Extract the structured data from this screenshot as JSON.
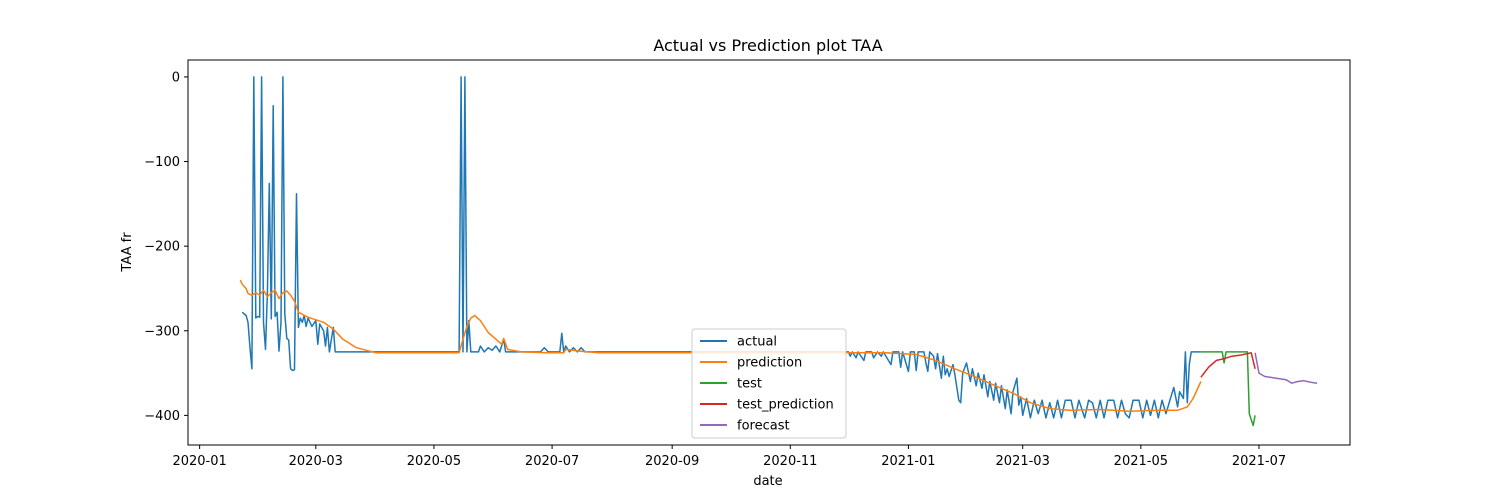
{
  "chart_data": {
    "type": "line",
    "title": "Actual vs Prediction plot TAA",
    "xlabel": "date",
    "ylabel": "TAA fr",
    "xlim": [
      "2019-12-26",
      "2021-08-17"
    ],
    "ylim": [
      -435,
      20
    ],
    "x_ticks": [
      "2020-01",
      "2020-03",
      "2020-05",
      "2020-07",
      "2020-09",
      "2020-11",
      "2021-01",
      "2021-03",
      "2021-05",
      "2021-07"
    ],
    "y_ticks": [
      0,
      -100,
      -200,
      -300,
      -400
    ],
    "grid": false,
    "legend_position": "lower-center",
    "series": [
      {
        "name": "actual",
        "color": "#1f77b4",
        "points": [
          [
            "2020-01-23",
            -278
          ],
          [
            "2020-01-25",
            -282
          ],
          [
            "2020-01-26",
            -290
          ],
          [
            "2020-01-27",
            -320
          ],
          [
            "2020-01-28",
            -345
          ],
          [
            "2020-01-29",
            0
          ],
          [
            "2020-01-30",
            -285
          ],
          [
            "2020-01-31",
            -283
          ],
          [
            "2020-02-01",
            -284
          ],
          [
            "2020-02-02",
            0
          ],
          [
            "2020-02-03",
            -290
          ],
          [
            "2020-02-04",
            -322
          ],
          [
            "2020-02-05",
            -255
          ],
          [
            "2020-02-06",
            -126
          ],
          [
            "2020-02-07",
            -286
          ],
          [
            "2020-02-08",
            -34
          ],
          [
            "2020-02-09",
            -283
          ],
          [
            "2020-02-10",
            -278
          ],
          [
            "2020-02-11",
            -324
          ],
          [
            "2020-02-12",
            -290
          ],
          [
            "2020-02-13",
            0
          ],
          [
            "2020-02-14",
            -280
          ],
          [
            "2020-02-15",
            -309
          ],
          [
            "2020-02-16",
            -311
          ],
          [
            "2020-02-17",
            -345
          ],
          [
            "2020-02-18",
            -347
          ],
          [
            "2020-02-19",
            -346
          ],
          [
            "2020-02-20",
            -138
          ],
          [
            "2020-02-21",
            -296
          ],
          [
            "2020-02-22",
            -285
          ],
          [
            "2020-02-23",
            -290
          ],
          [
            "2020-02-24",
            -282
          ],
          [
            "2020-02-25",
            -295
          ],
          [
            "2020-02-26",
            -285
          ],
          [
            "2020-02-28",
            -295
          ],
          [
            "2020-03-01",
            -288
          ],
          [
            "2020-03-02",
            -316
          ],
          [
            "2020-03-03",
            -292
          ],
          [
            "2020-03-05",
            -300
          ],
          [
            "2020-03-06",
            -318
          ],
          [
            "2020-03-07",
            -296
          ],
          [
            "2020-03-08",
            -325
          ],
          [
            "2020-03-10",
            -296
          ],
          [
            "2020-03-11",
            -325
          ],
          [
            "2020-04-01",
            -325
          ],
          [
            "2020-05-01",
            -325
          ],
          [
            "2020-05-14",
            -325
          ],
          [
            "2020-05-15",
            0
          ],
          [
            "2020-05-16",
            -325
          ],
          [
            "2020-05-17",
            0
          ],
          [
            "2020-05-18",
            -325
          ],
          [
            "2020-05-19",
            -288
          ],
          [
            "2020-05-20",
            -325
          ],
          [
            "2020-05-24",
            -325
          ],
          [
            "2020-05-25",
            -318
          ],
          [
            "2020-05-27",
            -325
          ],
          [
            "2020-05-29",
            -320
          ],
          [
            "2020-05-31",
            -323
          ],
          [
            "2020-06-02",
            -318
          ],
          [
            "2020-06-04",
            -325
          ],
          [
            "2020-06-06",
            -310
          ],
          [
            "2020-06-07",
            -325
          ],
          [
            "2020-06-25",
            -325
          ],
          [
            "2020-06-27",
            -320
          ],
          [
            "2020-06-29",
            -325
          ],
          [
            "2020-07-05",
            -325
          ],
          [
            "2020-07-06",
            -303
          ],
          [
            "2020-07-07",
            -325
          ],
          [
            "2020-07-08",
            -318
          ],
          [
            "2020-07-10",
            -325
          ],
          [
            "2020-07-12",
            -320
          ],
          [
            "2020-07-14",
            -325
          ],
          [
            "2020-07-16",
            -320
          ],
          [
            "2020-07-18",
            -325
          ],
          [
            "2020-12-01",
            -325
          ],
          [
            "2020-12-02",
            -330
          ],
          [
            "2020-12-03",
            -325
          ],
          [
            "2020-12-05",
            -332
          ],
          [
            "2020-12-06",
            -325
          ],
          [
            "2020-12-09",
            -335
          ],
          [
            "2020-12-10",
            -325
          ],
          [
            "2020-12-13",
            -325
          ],
          [
            "2020-12-14",
            -332
          ],
          [
            "2020-12-16",
            -325
          ],
          [
            "2020-12-18",
            -330
          ],
          [
            "2020-12-19",
            -325
          ],
          [
            "2020-12-23",
            -340
          ],
          [
            "2020-12-24",
            -325
          ],
          [
            "2020-12-27",
            -325
          ],
          [
            "2020-12-28",
            -343
          ],
          [
            "2020-12-29",
            -325
          ],
          [
            "2021-01-01",
            -348
          ],
          [
            "2021-01-02",
            -325
          ],
          [
            "2021-01-04",
            -325
          ],
          [
            "2021-01-05",
            -347
          ],
          [
            "2021-01-06",
            -325
          ],
          [
            "2021-01-09",
            -325
          ],
          [
            "2021-01-10",
            -338
          ],
          [
            "2021-01-11",
            -348
          ],
          [
            "2021-01-12",
            -325
          ],
          [
            "2021-01-14",
            -330
          ],
          [
            "2021-01-15",
            -345
          ],
          [
            "2021-01-16",
            -327
          ],
          [
            "2021-01-18",
            -356
          ],
          [
            "2021-01-19",
            -330
          ],
          [
            "2021-01-20",
            -352
          ],
          [
            "2021-01-21",
            -345
          ],
          [
            "2021-01-22",
            -354
          ],
          [
            "2021-01-24",
            -340
          ],
          [
            "2021-01-25",
            -352
          ],
          [
            "2021-01-27",
            -382
          ],
          [
            "2021-01-28",
            -385
          ],
          [
            "2021-01-29",
            -350
          ],
          [
            "2021-01-31",
            -338
          ],
          [
            "2021-02-02",
            -360
          ],
          [
            "2021-02-03",
            -345
          ],
          [
            "2021-02-05",
            -365
          ],
          [
            "2021-02-06",
            -350
          ],
          [
            "2021-02-08",
            -368
          ],
          [
            "2021-02-09",
            -352
          ],
          [
            "2021-02-11",
            -378
          ],
          [
            "2021-02-12",
            -360
          ],
          [
            "2021-02-14",
            -382
          ],
          [
            "2021-02-15",
            -362
          ],
          [
            "2021-02-17",
            -385
          ],
          [
            "2021-02-18",
            -365
          ],
          [
            "2021-02-20",
            -392
          ],
          [
            "2021-02-21",
            -370
          ],
          [
            "2021-02-23",
            -398
          ],
          [
            "2021-02-24",
            -372
          ],
          [
            "2021-02-26",
            -356
          ],
          [
            "2021-02-27",
            -388
          ],
          [
            "2021-02-28",
            -378
          ],
          [
            "2021-03-01",
            -400
          ],
          [
            "2021-03-03",
            -380
          ],
          [
            "2021-03-05",
            -403
          ],
          [
            "2021-03-07",
            -382
          ],
          [
            "2021-03-09",
            -398
          ],
          [
            "2021-03-11",
            -382
          ],
          [
            "2021-03-13",
            -403
          ],
          [
            "2021-03-15",
            -385
          ],
          [
            "2021-03-17",
            -403
          ],
          [
            "2021-03-19",
            -382
          ],
          [
            "2021-03-21",
            -403
          ],
          [
            "2021-03-23",
            -382
          ],
          [
            "2021-03-26",
            -382
          ],
          [
            "2021-03-28",
            -403
          ],
          [
            "2021-03-30",
            -382
          ],
          [
            "2021-04-02",
            -403
          ],
          [
            "2021-04-04",
            -382
          ],
          [
            "2021-04-06",
            -385
          ],
          [
            "2021-04-08",
            -403
          ],
          [
            "2021-04-10",
            -382
          ],
          [
            "2021-04-12",
            -403
          ],
          [
            "2021-04-14",
            -382
          ],
          [
            "2021-04-17",
            -382
          ],
          [
            "2021-04-19",
            -403
          ],
          [
            "2021-04-21",
            -382
          ],
          [
            "2021-04-23",
            -398
          ],
          [
            "2021-04-25",
            -403
          ],
          [
            "2021-04-27",
            -382
          ],
          [
            "2021-04-30",
            -382
          ],
          [
            "2021-05-02",
            -403
          ],
          [
            "2021-05-04",
            -382
          ],
          [
            "2021-05-06",
            -400
          ],
          [
            "2021-05-08",
            -382
          ],
          [
            "2021-05-10",
            -403
          ],
          [
            "2021-05-12",
            -382
          ],
          [
            "2021-05-14",
            -398
          ],
          [
            "2021-05-16",
            -382
          ],
          [
            "2021-05-18",
            -367
          ],
          [
            "2021-05-20",
            -390
          ],
          [
            "2021-05-21",
            -372
          ],
          [
            "2021-05-23",
            -380
          ],
          [
            "2021-05-24",
            -325
          ],
          [
            "2021-05-25",
            -385
          ],
          [
            "2021-05-26",
            -340
          ],
          [
            "2021-05-27",
            -325
          ],
          [
            "2021-05-30",
            -325
          ],
          [
            "2021-06-01",
            -325
          ]
        ]
      },
      {
        "name": "prediction",
        "color": "#ff7f0e",
        "points": [
          [
            "2020-01-22",
            -240
          ],
          [
            "2020-01-23",
            -245
          ],
          [
            "2020-01-25",
            -250
          ],
          [
            "2020-01-26",
            -256
          ],
          [
            "2020-01-28",
            -258
          ],
          [
            "2020-01-30",
            -255
          ],
          [
            "2020-02-01",
            -258
          ],
          [
            "2020-02-03",
            -252
          ],
          [
            "2020-02-05",
            -260
          ],
          [
            "2020-02-07",
            -255
          ],
          [
            "2020-02-09",
            -252
          ],
          [
            "2020-02-11",
            -262
          ],
          [
            "2020-02-13",
            -255
          ],
          [
            "2020-02-15",
            -253
          ],
          [
            "2020-02-17",
            -258
          ],
          [
            "2020-02-19",
            -265
          ],
          [
            "2020-02-21",
            -278
          ],
          [
            "2020-02-25",
            -283
          ],
          [
            "2020-03-01",
            -287
          ],
          [
            "2020-03-05",
            -290
          ],
          [
            "2020-03-10",
            -298
          ],
          [
            "2020-03-15",
            -310
          ],
          [
            "2020-03-22",
            -320
          ],
          [
            "2020-04-01",
            -326
          ],
          [
            "2020-05-14",
            -326
          ],
          [
            "2020-05-16",
            -310
          ],
          [
            "2020-05-18",
            -295
          ],
          [
            "2020-05-20",
            -285
          ],
          [
            "2020-05-22",
            -282
          ],
          [
            "2020-05-25",
            -288
          ],
          [
            "2020-05-29",
            -302
          ],
          [
            "2020-06-02",
            -310
          ],
          [
            "2020-06-05",
            -316
          ],
          [
            "2020-06-06",
            -309
          ],
          [
            "2020-06-08",
            -322
          ],
          [
            "2020-06-15",
            -325
          ],
          [
            "2020-06-29",
            -326
          ],
          [
            "2020-07-07",
            -326
          ],
          [
            "2020-07-08",
            -322
          ],
          [
            "2020-07-15",
            -324
          ],
          [
            "2020-07-25",
            -326
          ],
          [
            "2020-11-25",
            -326
          ],
          [
            "2020-12-20",
            -326
          ],
          [
            "2021-01-05",
            -328
          ],
          [
            "2021-01-15",
            -335
          ],
          [
            "2021-01-25",
            -345
          ],
          [
            "2021-02-05",
            -355
          ],
          [
            "2021-02-15",
            -365
          ],
          [
            "2021-02-25",
            -375
          ],
          [
            "2021-03-05",
            -385
          ],
          [
            "2021-03-15",
            -392
          ],
          [
            "2021-03-25",
            -394
          ],
          [
            "2021-04-10",
            -393
          ],
          [
            "2021-04-25",
            -395
          ],
          [
            "2021-05-10",
            -394
          ],
          [
            "2021-05-20",
            -394
          ],
          [
            "2021-05-25",
            -390
          ],
          [
            "2021-05-28",
            -380
          ],
          [
            "2021-06-01",
            -360
          ]
        ]
      },
      {
        "name": "test",
        "color": "#2ca02c",
        "points": [
          [
            "2021-06-01",
            -325
          ],
          [
            "2021-06-12",
            -325
          ],
          [
            "2021-06-13",
            -338
          ],
          [
            "2021-06-14",
            -325
          ],
          [
            "2021-06-20",
            -325
          ],
          [
            "2021-06-25",
            -325
          ],
          [
            "2021-06-26",
            -398
          ],
          [
            "2021-06-27",
            -405
          ],
          [
            "2021-06-28",
            -412
          ],
          [
            "2021-06-29",
            -400
          ]
        ]
      },
      {
        "name": "test_prediction",
        "color": "#d62728",
        "points": [
          [
            "2021-06-01",
            -355
          ],
          [
            "2021-06-05",
            -343
          ],
          [
            "2021-06-09",
            -335
          ],
          [
            "2021-06-13",
            -333
          ],
          [
            "2021-06-17",
            -330
          ],
          [
            "2021-06-21",
            -329
          ],
          [
            "2021-06-25",
            -327
          ],
          [
            "2021-06-27",
            -326
          ],
          [
            "2021-06-29",
            -345
          ]
        ]
      },
      {
        "name": "forecast",
        "color": "#9467bd",
        "points": [
          [
            "2021-06-29",
            -326
          ],
          [
            "2021-07-01",
            -350
          ],
          [
            "2021-07-04",
            -354
          ],
          [
            "2021-07-10",
            -356
          ],
          [
            "2021-07-15",
            -358
          ],
          [
            "2021-07-18",
            -362
          ],
          [
            "2021-07-21",
            -360
          ],
          [
            "2021-07-24",
            -359
          ],
          [
            "2021-07-28",
            -361
          ],
          [
            "2021-07-31",
            -362
          ]
        ]
      }
    ]
  }
}
